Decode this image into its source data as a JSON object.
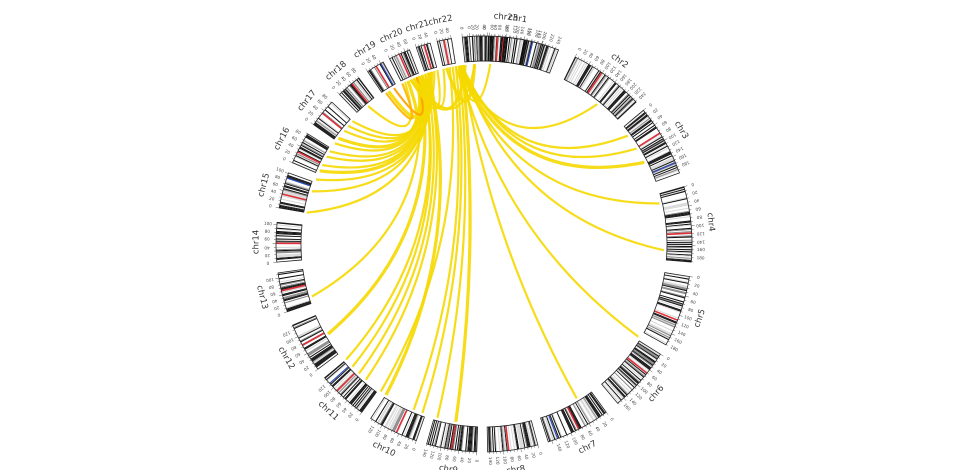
{
  "diagram": {
    "type": "circos",
    "chromosomes": [
      {
        "name": "chr1",
        "size": 249,
        "span": [
          -4,
          21
        ]
      },
      {
        "name": "chr2",
        "size": 243,
        "span": [
          26,
          47
        ]
      },
      {
        "name": "chr3",
        "size": 198,
        "span": [
          50,
          70
        ]
      },
      {
        "name": "chr4",
        "size": 191,
        "span": [
          74,
          95
        ]
      },
      {
        "name": "chr5",
        "size": 181,
        "span": [
          99,
          119
        ]
      },
      {
        "name": "chr6",
        "size": 171,
        "span": [
          122,
          140
        ]
      },
      {
        "name": "chr7",
        "size": 159,
        "span": [
          144,
          162
        ]
      },
      {
        "name": "chr8",
        "size": 146,
        "span": [
          165,
          179
        ]
      },
      {
        "name": "chr9",
        "size": 141,
        "span": [
          182,
          196
        ]
      },
      {
        "name": "chr10",
        "size": 135,
        "span": [
          199,
          213
        ]
      },
      {
        "name": "chr11",
        "size": 135,
        "span": [
          216,
          230
        ]
      },
      {
        "name": "chr12",
        "size": 133,
        "span": [
          233,
          247
        ]
      },
      {
        "name": "chr13",
        "size": 115,
        "span": [
          251,
          262
        ]
      },
      {
        "name": "chr14",
        "size": 107,
        "span": [
          265,
          276
        ]
      },
      {
        "name": "chr15",
        "size": 102,
        "span": [
          280,
          290
        ]
      },
      {
        "name": "chr16",
        "size": 90,
        "span": [
          293,
          302
        ]
      },
      {
        "name": "chr17",
        "size": 83,
        "span": [
          305,
          313
        ]
      },
      {
        "name": "chr18",
        "size": 80,
        "span": [
          316,
          323
        ]
      },
      {
        "name": "chr19",
        "size": 59,
        "span": [
          326,
          331
        ]
      },
      {
        "name": "chr20",
        "size": 64,
        "span": [
          333,
          339
        ]
      },
      {
        "name": "chr21",
        "size": 48,
        "span": [
          341,
          345
        ]
      },
      {
        "name": "chr22",
        "size": 51,
        "span": [
          347,
          351
        ]
      },
      {
        "name": "chr23",
        "size": 155,
        "span": [
          354,
          377
        ]
      }
    ],
    "links": [
      {
        "from": 348,
        "to": 357,
        "color": "#f5d800"
      },
      {
        "from": 351,
        "to": 2,
        "color": "#f5d800"
      },
      {
        "from": 352,
        "to": 39,
        "color": "#f5d800"
      },
      {
        "from": 353,
        "to": 53,
        "color": "#f5d800"
      },
      {
        "from": 353,
        "to": 58,
        "color": "#f5d800"
      },
      {
        "from": 352,
        "to": 63,
        "color": "#f5d800"
      },
      {
        "from": 352,
        "to": 77,
        "color": "#f5d800"
      },
      {
        "from": 353,
        "to": 92,
        "color": "#f5d800"
      },
      {
        "from": 352,
        "to": 121,
        "color": "#f5d800"
      },
      {
        "from": 353,
        "to": 149,
        "color": "#f5d800"
      },
      {
        "from": 353,
        "to": 189,
        "color": "#f5d800"
      },
      {
        "from": 352,
        "to": 195,
        "color": "#f5d800"
      },
      {
        "from": 351,
        "to": 200,
        "color": "#f5d800"
      },
      {
        "from": 350,
        "to": 203,
        "color": "#f5d800"
      },
      {
        "from": 349,
        "to": 215,
        "color": "#f5d800"
      },
      {
        "from": 342,
        "to": 213,
        "color": "#f5d800"
      },
      {
        "from": 342,
        "to": 221,
        "color": "#f5d800"
      },
      {
        "from": 341,
        "to": 224,
        "color": "#f5d800"
      },
      {
        "from": 340,
        "to": 227,
        "color": "#f5d800"
      },
      {
        "from": 340,
        "to": 230,
        "color": "#f5d800"
      },
      {
        "from": 339,
        "to": 240,
        "color": "#f5d800"
      },
      {
        "from": 338,
        "to": 253,
        "color": "#f5d800"
      },
      {
        "from": 343,
        "to": 280,
        "color": "#f5d800"
      },
      {
        "from": 343,
        "to": 287,
        "color": "#f5d800"
      },
      {
        "from": 344,
        "to": 291,
        "color": "#f5d800"
      },
      {
        "from": 343,
        "to": 294,
        "color": "#f5d800"
      },
      {
        "from": 342,
        "to": 296,
        "color": "#f5d800"
      },
      {
        "from": 342,
        "to": 299,
        "color": "#f5d800"
      },
      {
        "from": 341,
        "to": 301,
        "color": "#f5d800"
      },
      {
        "from": 340,
        "to": 304,
        "color": "#f5d800"
      },
      {
        "from": 339,
        "to": 306,
        "color": "#f5d800"
      },
      {
        "from": 339,
        "to": 309,
        "color": "#f5d800"
      },
      {
        "from": 340,
        "to": 311,
        "color": "#f5d800"
      },
      {
        "from": 341,
        "to": 313,
        "color": "#f5d800"
      },
      {
        "from": 334,
        "to": 320,
        "color": "#f5d800"
      },
      {
        "from": 335,
        "to": 328,
        "color": "#f5d800"
      },
      {
        "from": 338,
        "to": 330,
        "color": "#ff9d00"
      },
      {
        "from": 333,
        "to": 327,
        "color": "#ffb400"
      },
      {
        "from": 336,
        "to": 345,
        "color": "#f5d800"
      },
      {
        "from": 337,
        "to": 347,
        "color": "#f5d800"
      },
      {
        "from": 336,
        "to": 354,
        "color": "#f5d800"
      },
      {
        "from": 337,
        "to": 357,
        "color": "#f5d800"
      }
    ],
    "colors": {
      "link": "#f5d800",
      "link_strong": "#ff9d00",
      "band_dark": "#111111",
      "band_mid": "#888888",
      "band_light": "#d9d9d9",
      "centromere": "#e0303a",
      "marker_blue": "#3050c0"
    }
  }
}
